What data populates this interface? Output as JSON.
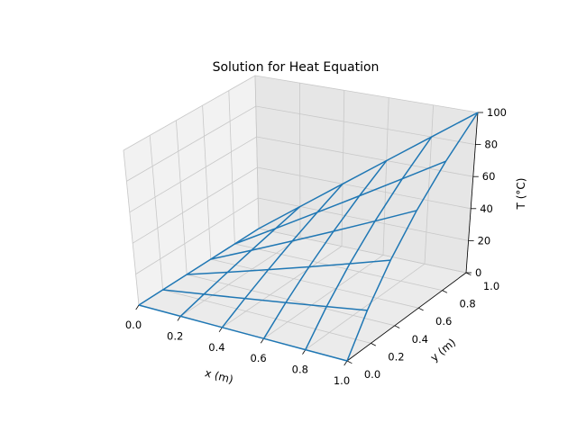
{
  "chart_data": {
    "type": "wireframe",
    "title": "Solution for Heat Equation",
    "xlabel": "x (m)",
    "ylabel": "y (m)",
    "zlabel": "T (°C)",
    "xlim": [
      0,
      1
    ],
    "ylim": [
      0,
      1
    ],
    "zlim": [
      0,
      100
    ],
    "x_ticks": [
      "0.0",
      "0.2",
      "0.4",
      "0.6",
      "0.8",
      "1.0"
    ],
    "y_ticks": [
      "0.0",
      "0.2",
      "0.4",
      "0.6",
      "0.8",
      "1.0"
    ],
    "z_ticks": [
      "0",
      "20",
      "40",
      "60",
      "80",
      "100"
    ],
    "grid": true,
    "color": "#1f77b4",
    "x": [
      0.0,
      0.2,
      0.4,
      0.6,
      0.8,
      1.0
    ],
    "y": [
      0.0,
      0.2,
      0.4,
      0.6,
      0.8,
      1.0
    ],
    "z_rows": [
      [
        0,
        0,
        0,
        0,
        0,
        0
      ],
      [
        0,
        4,
        8,
        12,
        16,
        20
      ],
      [
        0,
        8,
        16,
        24,
        32,
        40
      ],
      [
        0,
        12,
        24,
        36,
        48,
        60
      ],
      [
        0,
        16,
        32,
        48,
        64,
        80
      ],
      [
        0,
        20,
        40,
        60,
        80,
        100
      ]
    ]
  }
}
